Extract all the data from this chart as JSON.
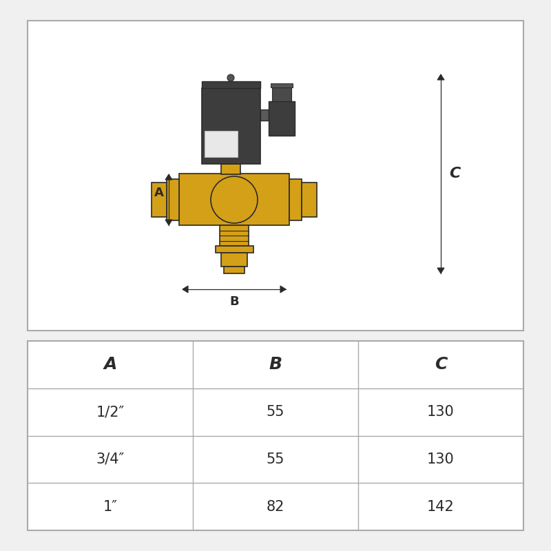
{
  "background_color": "#f0f0f0",
  "diagram_bg": "#ffffff",
  "table_bg": "#ffffff",
  "yellow": "#d4a017",
  "yellow_light": "#e8b800",
  "dark_gray": "#3d3d3d",
  "mid_gray": "#5a5a5a",
  "light_gray": "#888888",
  "white": "#ffffff",
  "line_color": "#2a2a2a",
  "table_headers": [
    "A",
    "B",
    "C"
  ],
  "table_rows": [
    [
      "1/2″",
      "55",
      "130"
    ],
    [
      "3/4″",
      "55",
      "130"
    ],
    [
      "1″",
      "82",
      "142"
    ]
  ],
  "dim_label_A": "A",
  "dim_label_B": "B",
  "dim_label_C": "C"
}
